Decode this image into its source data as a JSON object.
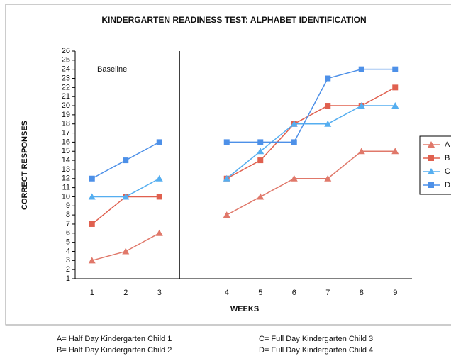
{
  "chart_data": {
    "type": "line",
    "title": "KINDERGARTEN READINESS TEST:  ALPHABET IDENTIFICATION",
    "x_label": "WEEKS",
    "y_label": "CORRECT RESPONSES",
    "annotation": "Baseline",
    "categories": [
      "1",
      "2",
      "3",
      null,
      "4",
      "5",
      "6",
      "7",
      "8",
      "9"
    ],
    "series": [
      {
        "name": "A",
        "color": "#e0786a",
        "marker": "triangle",
        "values": [
          3,
          4,
          6,
          null,
          8,
          10,
          12,
          12,
          15,
          15
        ]
      },
      {
        "name": "B",
        "color": "#e0604f",
        "marker": "square",
        "values": [
          7,
          10,
          10,
          null,
          12,
          14,
          18,
          20,
          20,
          22
        ]
      },
      {
        "name": "C",
        "color": "#55aef0",
        "marker": "triangle",
        "values": [
          10,
          10,
          12,
          null,
          12,
          15,
          18,
          18,
          20,
          20
        ]
      },
      {
        "name": "D",
        "color": "#4d90e8",
        "marker": "square",
        "values": [
          12,
          14,
          16,
          null,
          16,
          16,
          16,
          23,
          24,
          24
        ]
      }
    ],
    "ylim": [
      1,
      26
    ],
    "yticks": [
      1,
      2,
      3,
      4,
      5,
      6,
      7,
      8,
      9,
      10,
      11,
      12,
      13,
      14,
      15,
      16,
      17,
      18,
      19,
      20,
      21,
      22,
      23,
      24,
      25,
      26
    ],
    "legend": "right",
    "notes": [
      "A= Half Day Kindergarten Child 1",
      "B= Half Day Kindergarten Child 2",
      "C= Full Day Kindergarten Child 3",
      "D= Full Day Kindergarten Child 4"
    ]
  }
}
